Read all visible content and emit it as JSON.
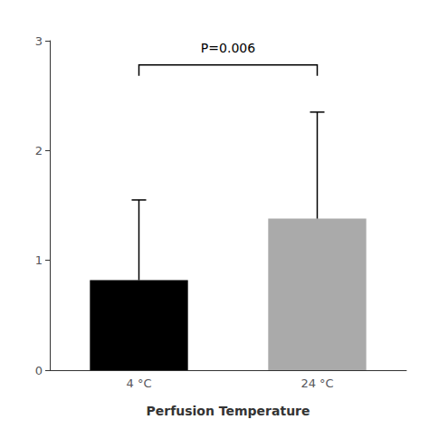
{
  "chart_data": {
    "type": "bar",
    "xlabel": "Perfusion Temperature",
    "categories": [
      "4 °C",
      "24 °C"
    ],
    "values": [
      0.82,
      1.38
    ],
    "colors": [
      "#000000",
      "#aaaaaa"
    ],
    "error_upper": [
      1.55,
      2.35
    ],
    "ylim": [
      0,
      3
    ],
    "yticks": [
      0,
      1,
      2,
      3
    ],
    "grid": false,
    "annotations": [
      {
        "text": "P=0.006",
        "y": 2.88,
        "bracket_y": 2.78,
        "bracket_drop": 0.1,
        "from": "4 °C",
        "to": "24 °C"
      }
    ]
  }
}
